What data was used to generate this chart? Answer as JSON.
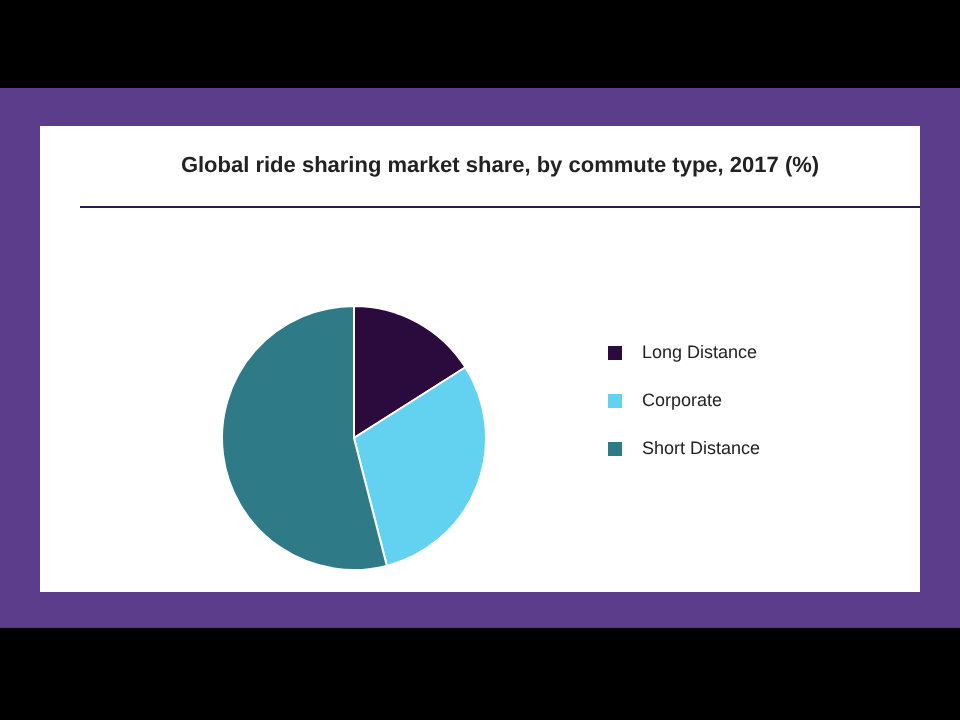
{
  "chart_data": {
    "type": "pie",
    "title": "Global ride sharing market share, by commute type, 2017 (%)",
    "categories": [
      "Long Distance",
      "Corporate",
      "Short Distance"
    ],
    "values": [
      16,
      30,
      54
    ],
    "colors": [
      "#2b0a3d",
      "#62d2f0",
      "#2f7a87"
    ],
    "legend": "right"
  }
}
